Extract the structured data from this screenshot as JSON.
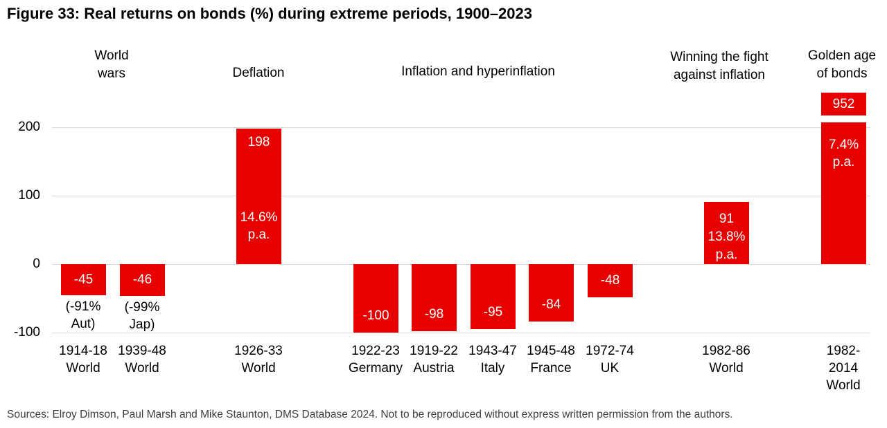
{
  "title": "Figure 33: Real returns on bonds (%) during extreme periods, 1900–2023",
  "source": "Sources: Elroy Dimson, Paul Marsh and Mike Staunton, DMS Database 2024. Not to be reproduced without express written permission from the authors.",
  "colors": {
    "bar": "#e60000",
    "bar_label": "#ffffff",
    "grid": "#d9d9d9",
    "text": "#000000",
    "source_text": "#3d3d3d"
  },
  "chart_data": {
    "type": "bar",
    "title": "Real returns on bonds (%) during extreme periods, 1900–2023",
    "xlabel": "",
    "ylabel": "",
    "yticks": [
      200,
      100,
      0,
      -100
    ],
    "ylim": [
      -110,
      260
    ],
    "grid": "horizontal",
    "legend": "none",
    "groups": [
      {
        "label": "World wars",
        "lines": [
          "World",
          "wars"
        ]
      },
      {
        "label": "Deflation",
        "lines": [
          "Deflation"
        ]
      },
      {
        "label": "Inflation and hyperinflation",
        "lines": [
          "Inflation and hyperinflation"
        ]
      },
      {
        "label": "Winning the fight against inflation",
        "lines": [
          "Winning the fight",
          "against inflation"
        ]
      },
      {
        "label": "Golden age of bonds",
        "lines": [
          "Golden age",
          "of bonds"
        ]
      }
    ],
    "bars": [
      {
        "period": "1914-18",
        "region": "World",
        "group": "World wars",
        "value": -45,
        "value_label": "-45",
        "annotation": "(-91% Aut)",
        "annotation_lines": [
          "(-91%",
          "Aut)"
        ],
        "tick_lines": [
          "1914-18",
          "World"
        ],
        "label_placement": "center"
      },
      {
        "period": "1939-48",
        "region": "World",
        "group": "World wars",
        "value": -46,
        "value_label": "-46",
        "annotation": "(-99% Jap)",
        "annotation_lines": [
          "(-99%",
          "Jap)"
        ],
        "tick_lines": [
          "1939-48",
          "World"
        ],
        "label_placement": "center"
      },
      {
        "period": "1926-33",
        "region": "World",
        "group": "Deflation",
        "value": 198,
        "value_label": "198",
        "pa": "14.6% p.a.",
        "pa_lines": [
          "14.6%",
          "p.a."
        ],
        "tick_lines": [
          "1926-33",
          "World"
        ],
        "label_placement": "top"
      },
      {
        "period": "1922-23",
        "region": "Germany",
        "group": "Inflation and hyperinflation",
        "value": -100,
        "value_label": "-100",
        "tick_lines": [
          "1922-23",
          "Germany"
        ],
        "label_placement": "bottom"
      },
      {
        "period": "1919-22",
        "region": "Austria",
        "group": "Inflation and hyperinflation",
        "value": -98,
        "value_label": "-98",
        "tick_lines": [
          "1919-22",
          "Austria"
        ],
        "label_placement": "bottom"
      },
      {
        "period": "1943-47",
        "region": "Italy",
        "group": "Inflation and hyperinflation",
        "value": -95,
        "value_label": "-95",
        "tick_lines": [
          "1943-47",
          "Italy"
        ],
        "label_placement": "bottom"
      },
      {
        "period": "1945-48",
        "region": "France",
        "group": "Inflation and hyperinflation",
        "value": -84,
        "value_label": "-84",
        "tick_lines": [
          "1945-48",
          "France"
        ],
        "label_placement": "bottom"
      },
      {
        "period": "1972-74",
        "region": "UK",
        "group": "Inflation and hyperinflation",
        "value": -48,
        "value_label": "-48",
        "tick_lines": [
          "1972-74",
          "UK"
        ],
        "label_placement": "center"
      },
      {
        "period": "1982-86",
        "region": "World",
        "group": "Winning the fight against inflation",
        "value": 91,
        "value_label": "91",
        "pa": "13.8% p.a.",
        "pa_lines": [
          "13.8%",
          "p.a."
        ],
        "tick_lines": [
          "1982-86",
          "World"
        ],
        "label_placement": "top-stacked"
      },
      {
        "period": "1982-2014",
        "region": "World",
        "group": "Golden age of bonds",
        "value": 952,
        "value_label": "952",
        "pa": "7.4% p.a.",
        "pa_lines": [
          "7.4%",
          "p.a."
        ],
        "tick_lines": [
          "1982-",
          "2014",
          "World"
        ],
        "truncated": true,
        "label_placement": "cap"
      }
    ]
  }
}
